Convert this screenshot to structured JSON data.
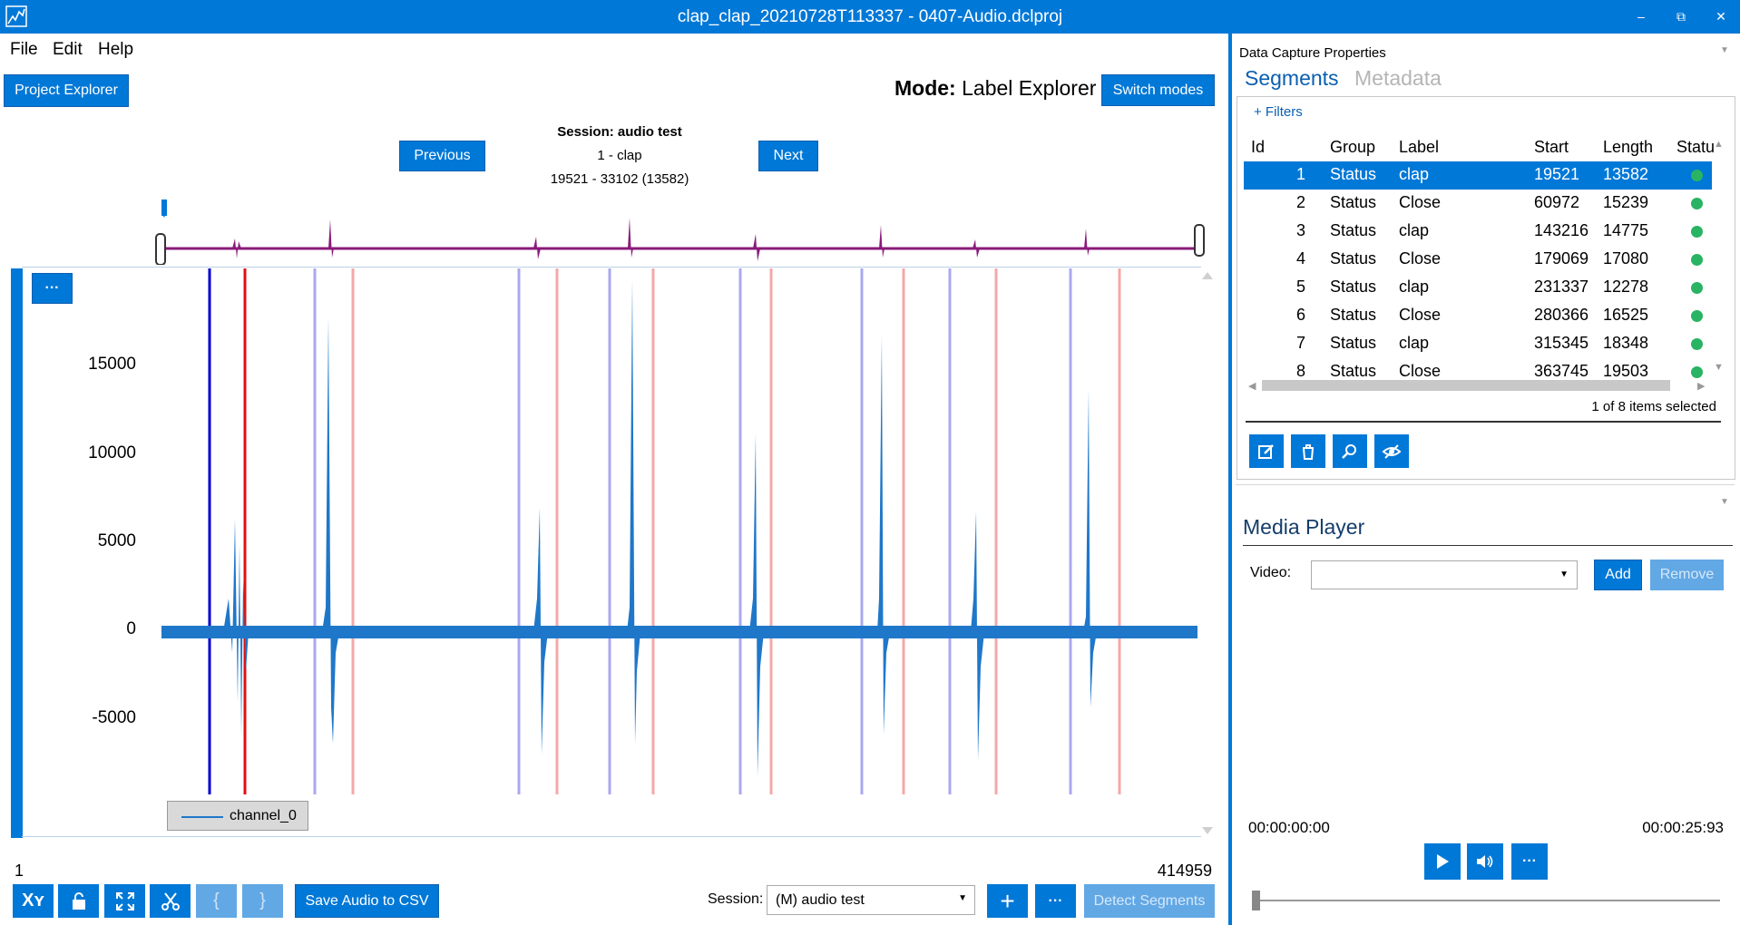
{
  "window": {
    "title": "clap_clap_20210728T113337 - 0407-Audio.dclproj"
  },
  "menu": {
    "file": "File",
    "edit": "Edit",
    "help": "Help"
  },
  "toolbar": {
    "project_explorer": "Project Explorer",
    "mode_label": "Mode:",
    "mode_value": "Label Explorer",
    "switch_modes": "Switch modes"
  },
  "session_info": {
    "session": "Session: audio test",
    "segment": "1 - clap",
    "range": "19521 - 33102 (13582)",
    "previous": "Previous",
    "next": "Next"
  },
  "chart": {
    "more": "···",
    "y_ticks": [
      "15000",
      "10000",
      "5000",
      "0",
      "-5000"
    ],
    "legend": "channel_0",
    "x_start": "1",
    "x_end": "414959",
    "series_color": "#1f77c9",
    "selected_start_color": "#0000cc",
    "selected_end_color": "#e01010",
    "segment_start_color": "#a9a8f0",
    "segment_end_color": "#f4a8a8"
  },
  "bottom_toolbar": {
    "xy": "Xʏ",
    "open_brace": "{",
    "close_brace": "}",
    "save_audio": "Save Audio to CSV",
    "session_label": "Session:",
    "session_value": "(M) audio test",
    "plus": "+",
    "more": "···",
    "detect": "Detect Segments"
  },
  "right_panel": {
    "title": "Data Capture Properties",
    "tab_segments": "Segments",
    "tab_metadata": "Metadata",
    "filters": "+ Filters",
    "columns": [
      "Id",
      "Group",
      "Label",
      "Start",
      "Length",
      "Statu"
    ],
    "rows": [
      {
        "id": "1",
        "group": "Status",
        "label": "clap",
        "start": "19521",
        "length": "13582"
      },
      {
        "id": "2",
        "group": "Status",
        "label": "Close",
        "start": "60972",
        "length": "15239"
      },
      {
        "id": "3",
        "group": "Status",
        "label": "clap",
        "start": "143216",
        "length": "14775"
      },
      {
        "id": "4",
        "group": "Status",
        "label": "Close",
        "start": "179069",
        "length": "17080"
      },
      {
        "id": "5",
        "group": "Status",
        "label": "clap",
        "start": "231337",
        "length": "12278"
      },
      {
        "id": "6",
        "group": "Status",
        "label": "Close",
        "start": "280366",
        "length": "16525"
      },
      {
        "id": "7",
        "group": "Status",
        "label": "clap",
        "start": "315345",
        "length": "18348"
      },
      {
        "id": "8",
        "group": "Status",
        "label": "Close",
        "start": "363745",
        "length": "19503"
      }
    ],
    "selection_count": "1 of 8 items selected",
    "media_player": {
      "title": "Media Player",
      "video_label": "Video:",
      "add": "Add",
      "remove": "Remove",
      "time_start": "00:00:00:00",
      "time_end": "00:00:25:93"
    }
  }
}
